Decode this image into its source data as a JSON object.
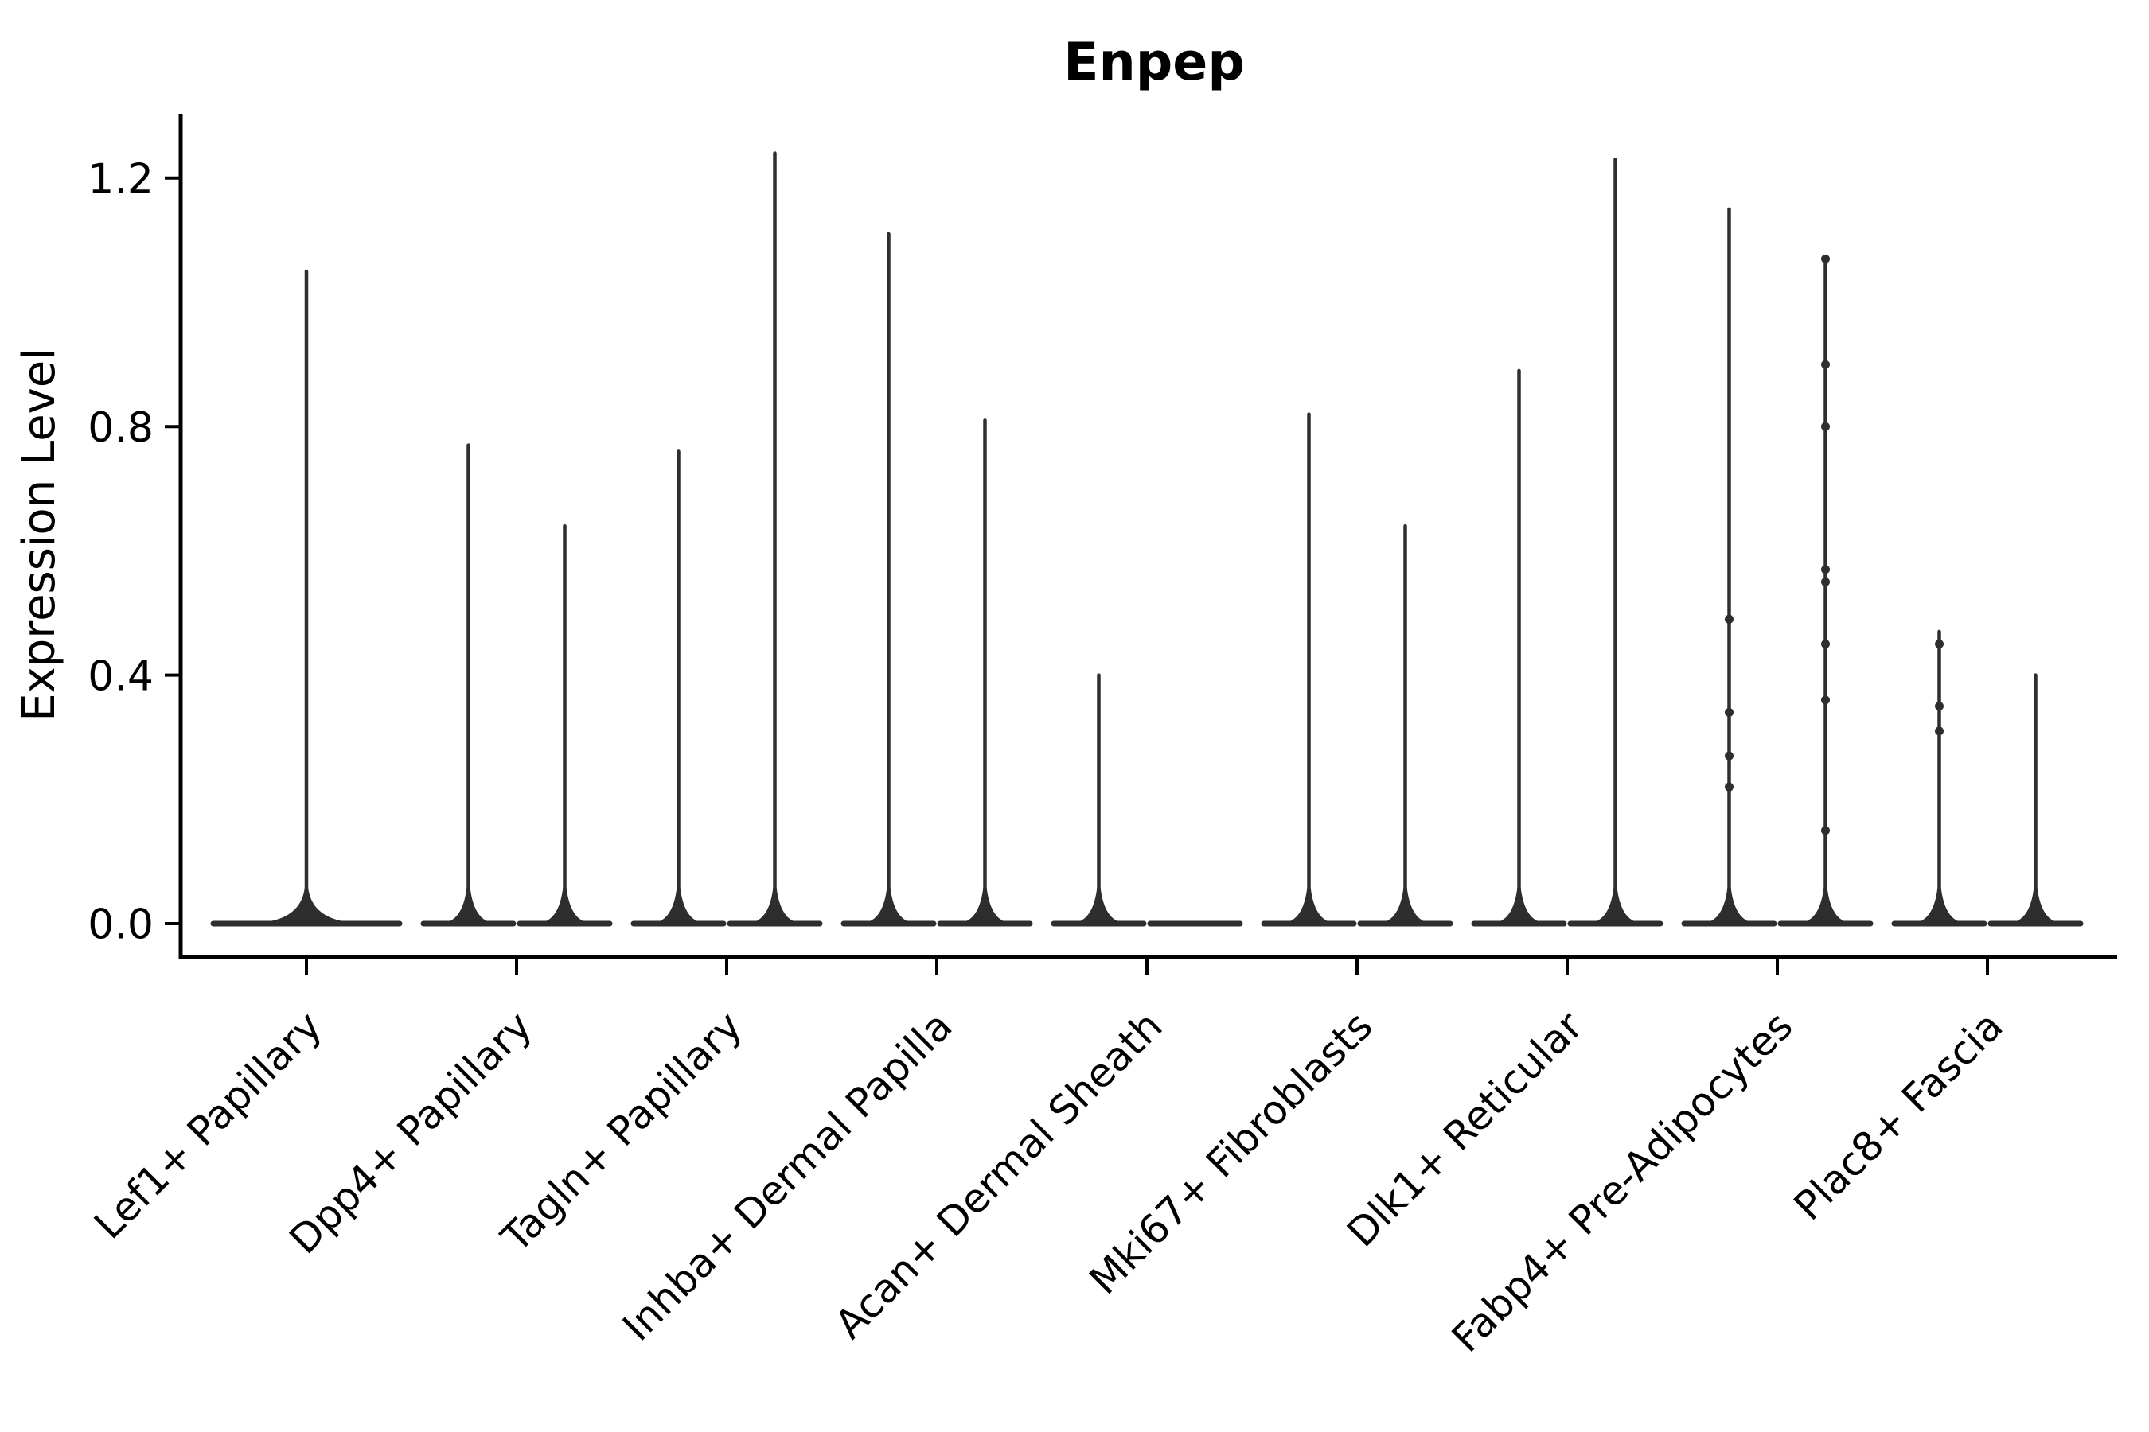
{
  "figure": {
    "title": "Enpep",
    "ylabel": "Expression Level"
  },
  "colors": {
    "background": "#ffffff",
    "axis": "#000000",
    "text": "#000000",
    "violin": "#2e2e2e"
  },
  "chart_data": {
    "type": "violin",
    "title": "Enpep",
    "xlabel": "",
    "ylabel": "Expression Level",
    "ylim": [
      0,
      1.3
    ],
    "yticks": [
      0.0,
      0.4,
      0.8,
      1.2
    ],
    "ytick_labels": [
      "0.0",
      "0.4",
      "0.8",
      "1.2"
    ],
    "grid": false,
    "legend_position": "none",
    "categories": [
      "Lef1+ Papillary",
      "Dpp4+ Papillary",
      "Tagln+ Papillary",
      "Inhba+ Dermal Papilla",
      "Acan+ Dermal Sheath",
      "Mki67+ Fibroblasts",
      "Dlk1+ Reticular",
      "Fabp4+ Pre-Adipocytes",
      "Plac8+ Fascia"
    ],
    "violins": [
      {
        "category": "Lef1+ Papillary",
        "parts": [
          {
            "pos": "center",
            "max": 1.05
          }
        ]
      },
      {
        "category": "Dpp4+ Papillary",
        "parts": [
          {
            "pos": "left",
            "max": 0.77
          },
          {
            "pos": "right",
            "max": 0.64
          }
        ]
      },
      {
        "category": "Tagln+ Papillary",
        "parts": [
          {
            "pos": "left",
            "max": 0.76
          },
          {
            "pos": "right",
            "max": 1.24
          }
        ]
      },
      {
        "category": "Inhba+ Dermal Papilla",
        "parts": [
          {
            "pos": "left",
            "max": 1.11
          },
          {
            "pos": "right",
            "max": 0.81
          }
        ]
      },
      {
        "category": "Acan+ Dermal Sheath",
        "parts": [
          {
            "pos": "left",
            "max": 0.4
          },
          {
            "pos": "right",
            "max": 0.0
          }
        ]
      },
      {
        "category": "Mki67+ Fibroblasts",
        "parts": [
          {
            "pos": "left",
            "max": 0.82
          },
          {
            "pos": "right",
            "max": 0.64
          }
        ]
      },
      {
        "category": "Dlk1+ Reticular",
        "parts": [
          {
            "pos": "left",
            "max": 0.89
          },
          {
            "pos": "right",
            "max": 1.23
          }
        ]
      },
      {
        "category": "Fabp4+ Pre-Adipocytes",
        "parts": [
          {
            "pos": "left",
            "max": 1.15,
            "points": [
              0.49,
              0.34,
              0.27,
              0.22
            ]
          },
          {
            "pos": "right",
            "max": 1.07,
            "points": [
              1.07,
              0.9,
              0.8,
              0.57,
              0.55,
              0.45,
              0.36,
              0.15
            ]
          }
        ]
      },
      {
        "category": "Plac8+ Fascia",
        "parts": [
          {
            "pos": "left",
            "max": 0.47,
            "points": [
              0.45,
              0.35,
              0.31
            ]
          },
          {
            "pos": "right",
            "max": 0.4
          }
        ]
      }
    ]
  }
}
